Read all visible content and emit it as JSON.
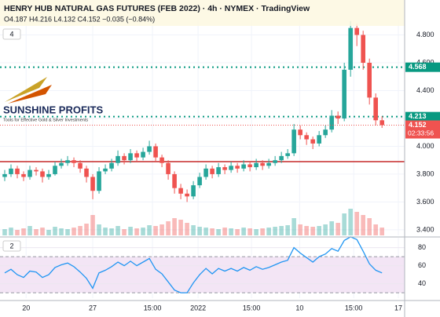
{
  "chart_data": {
    "type": "candlestick",
    "title": "HENRY HUB NATURAL GAS FUTURES (FEB 2022) · 4h · NYMEX · TradingView",
    "ohlc_text": "O4.187 H4.216 L4.132 C4.152 −0.035 (−0.84%)",
    "main_pane_label": "4",
    "rsi_pane_label": "2",
    "watermark": {
      "name": "SUNSHINE PROFITS",
      "tagline": "Tools for Effective Gold & Silver Investments"
    },
    "up_color": "#26a69a",
    "down_color": "#ef5350",
    "xlim": [
      -0.75,
      63.6
    ],
    "xticks": [
      {
        "value": 3.4,
        "label": "20"
      },
      {
        "value": 14,
        "label": "27"
      },
      {
        "value": 23.5,
        "label": "15:00"
      },
      {
        "value": 30.75,
        "label": "2022"
      },
      {
        "value": 39.25,
        "label": "15:00"
      },
      {
        "value": 46.9,
        "label": "10"
      },
      {
        "value": 55.5,
        "label": "15:00"
      },
      {
        "value": 62.6,
        "label": "17"
      }
    ],
    "ylim": [
      3.36,
      4.91
    ],
    "yticks": [
      {
        "value": 3.4,
        "label": "3.400"
      },
      {
        "value": 3.6,
        "label": "3.600"
      },
      {
        "value": 3.8,
        "label": "3.800"
      },
      {
        "value": 4.0,
        "label": "4.000"
      },
      {
        "value": 4.2,
        "label": "4.200"
      },
      {
        "value": 4.4,
        "label": "4.400"
      },
      {
        "value": 4.6,
        "label": "4.600"
      },
      {
        "value": 4.8,
        "label": "4.800"
      }
    ],
    "grid": true,
    "levels": [
      {
        "value": 4.568,
        "color": "#089981"
      },
      {
        "value": 4.213,
        "color": "#089981"
      }
    ],
    "support_line": {
      "value": 3.89,
      "color": "#c62828"
    },
    "countdown": "02:33:56",
    "candles": [
      [
        3.78,
        3.83,
        3.75,
        3.8
      ],
      [
        3.8,
        3.87,
        3.78,
        3.84
      ],
      [
        3.84,
        3.86,
        3.77,
        3.8
      ],
      [
        3.8,
        3.82,
        3.75,
        3.78
      ],
      [
        3.78,
        3.86,
        3.76,
        3.83
      ],
      [
        3.83,
        3.85,
        3.79,
        3.82
      ],
      [
        3.82,
        3.84,
        3.74,
        3.78
      ],
      [
        3.78,
        3.83,
        3.76,
        3.8
      ],
      [
        3.8,
        3.89,
        3.79,
        3.86
      ],
      [
        3.86,
        3.91,
        3.84,
        3.88
      ],
      [
        3.88,
        3.93,
        3.86,
        3.9
      ],
      [
        3.9,
        3.92,
        3.85,
        3.88
      ],
      [
        3.88,
        3.9,
        3.81,
        3.84
      ],
      [
        3.84,
        3.86,
        3.74,
        3.78
      ],
      [
        3.78,
        3.8,
        3.62,
        3.68
      ],
      [
        3.68,
        3.85,
        3.66,
        3.82
      ],
      [
        3.82,
        3.87,
        3.8,
        3.84
      ],
      [
        3.84,
        3.91,
        3.82,
        3.88
      ],
      [
        3.88,
        3.97,
        3.86,
        3.93
      ],
      [
        3.93,
        3.95,
        3.87,
        3.9
      ],
      [
        3.9,
        3.98,
        3.88,
        3.95
      ],
      [
        3.95,
        3.97,
        3.89,
        3.92
      ],
      [
        3.92,
        3.99,
        3.9,
        3.96
      ],
      [
        3.96,
        4.04,
        3.94,
        4.0
      ],
      [
        4.0,
        4.02,
        3.89,
        3.92
      ],
      [
        3.92,
        3.94,
        3.85,
        3.88
      ],
      [
        3.88,
        3.9,
        3.76,
        3.8
      ],
      [
        3.8,
        3.82,
        3.66,
        3.7
      ],
      [
        3.7,
        3.73,
        3.62,
        3.66
      ],
      [
        3.66,
        3.69,
        3.6,
        3.64
      ],
      [
        3.64,
        3.75,
        3.62,
        3.72
      ],
      [
        3.72,
        3.81,
        3.7,
        3.78
      ],
      [
        3.78,
        3.87,
        3.76,
        3.84
      ],
      [
        3.84,
        3.86,
        3.77,
        3.8
      ],
      [
        3.8,
        3.88,
        3.78,
        3.85
      ],
      [
        3.85,
        3.87,
        3.8,
        3.83
      ],
      [
        3.83,
        3.89,
        3.81,
        3.86
      ],
      [
        3.86,
        3.88,
        3.81,
        3.84
      ],
      [
        3.84,
        3.9,
        3.82,
        3.87
      ],
      [
        3.87,
        3.89,
        3.82,
        3.85
      ],
      [
        3.85,
        3.91,
        3.83,
        3.88
      ],
      [
        3.88,
        3.9,
        3.83,
        3.86
      ],
      [
        3.86,
        3.91,
        3.84,
        3.88
      ],
      [
        3.88,
        3.93,
        3.86,
        3.9
      ],
      [
        3.9,
        3.96,
        3.88,
        3.93
      ],
      [
        3.93,
        3.98,
        3.91,
        3.95
      ],
      [
        3.95,
        4.16,
        3.93,
        4.12
      ],
      [
        4.12,
        4.15,
        4.05,
        4.08
      ],
      [
        4.08,
        4.1,
        4.01,
        4.05
      ],
      [
        4.05,
        4.07,
        3.98,
        4.02
      ],
      [
        4.02,
        4.11,
        4.0,
        4.08
      ],
      [
        4.08,
        4.15,
        4.06,
        4.12
      ],
      [
        4.12,
        4.26,
        4.1,
        4.22
      ],
      [
        4.22,
        4.25,
        4.16,
        4.2
      ],
      [
        4.2,
        4.6,
        4.18,
        4.55
      ],
      [
        4.55,
        4.9,
        4.5,
        4.85
      ],
      [
        4.85,
        4.88,
        4.72,
        4.8
      ],
      [
        4.8,
        4.83,
        4.55,
        4.6
      ],
      [
        4.6,
        4.63,
        4.3,
        4.35
      ],
      [
        4.35,
        4.38,
        4.15,
        4.187
      ],
      [
        4.187,
        4.216,
        4.132,
        4.152
      ]
    ],
    "volume": [
      8,
      10,
      7,
      9,
      12,
      8,
      10,
      7,
      11,
      9,
      8,
      10,
      12,
      15,
      26,
      14,
      10,
      9,
      12,
      8,
      11,
      9,
      10,
      13,
      12,
      14,
      18,
      22,
      20,
      16,
      13,
      11,
      10,
      9,
      8,
      10,
      9,
      8,
      10,
      9,
      8,
      9,
      10,
      11,
      12,
      13,
      22,
      14,
      12,
      11,
      12,
      14,
      18,
      16,
      28,
      34,
      30,
      26,
      22,
      14,
      10
    ],
    "rsi": {
      "ylim": [
        24,
        91
      ],
      "yticks": [
        40,
        60,
        80
      ],
      "bands": [
        30,
        70
      ],
      "color": "#2196f3",
      "values": [
        52,
        56,
        50,
        47,
        54,
        53,
        47,
        50,
        58,
        61,
        63,
        59,
        53,
        46,
        35,
        52,
        55,
        59,
        64,
        60,
        65,
        60,
        64,
        68,
        56,
        51,
        42,
        33,
        30,
        30,
        41,
        50,
        57,
        51,
        57,
        54,
        57,
        54,
        58,
        55,
        59,
        56,
        58,
        61,
        64,
        66,
        80,
        74,
        69,
        64,
        70,
        73,
        79,
        76,
        88,
        92,
        89,
        76,
        62,
        55,
        52
      ]
    }
  }
}
